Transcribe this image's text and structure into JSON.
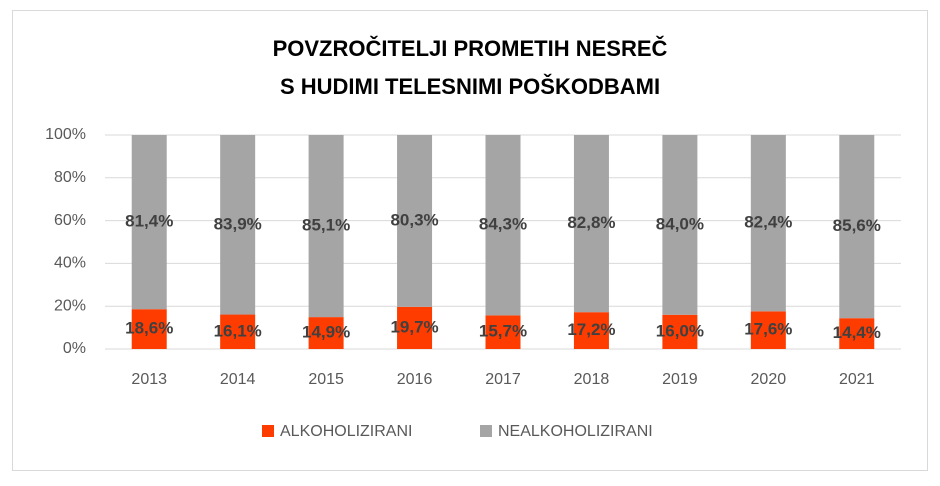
{
  "chart_data": {
    "type": "stacked_bar",
    "title": [
      "POVZROČITELJI PROMETIH NESREČ",
      "S HUDIMI TELESNIMI POŠKODBAMI"
    ],
    "categories": [
      "2013",
      "2014",
      "2015",
      "2016",
      "2017",
      "2018",
      "2019",
      "2020",
      "2021"
    ],
    "series": [
      {
        "name": "ALKOHOLIZIRANI",
        "color": "#fe3c00",
        "values": [
          18.6,
          16.1,
          14.9,
          19.7,
          15.7,
          17.2,
          16.0,
          17.6,
          14.4
        ],
        "value_labels": [
          "18,6%",
          "16,1%",
          "14,9%",
          "19,7%",
          "15,7%",
          "17,2%",
          "16,0%",
          "17,6%",
          "14,4%"
        ]
      },
      {
        "name": "NEALKOHOLIZIRANI",
        "color": "#a5a5a5",
        "values": [
          81.4,
          83.9,
          85.1,
          80.3,
          84.3,
          82.8,
          84.0,
          82.4,
          85.6
        ],
        "value_labels": [
          "81,4%",
          "83,9%",
          "85,1%",
          "80,3%",
          "84,3%",
          "82,8%",
          "84,0%",
          "82,4%",
          "85,6%"
        ]
      }
    ],
    "ylim": [
      0,
      100
    ],
    "yticks": [
      {
        "value": 0,
        "label": "0%"
      },
      {
        "value": 20,
        "label": "20%"
      },
      {
        "value": 40,
        "label": "40%"
      },
      {
        "value": 60,
        "label": "60%"
      },
      {
        "value": 80,
        "label": "80%"
      },
      {
        "value": 100,
        "label": "100%"
      }
    ],
    "grid": true,
    "legend": "bottom"
  }
}
